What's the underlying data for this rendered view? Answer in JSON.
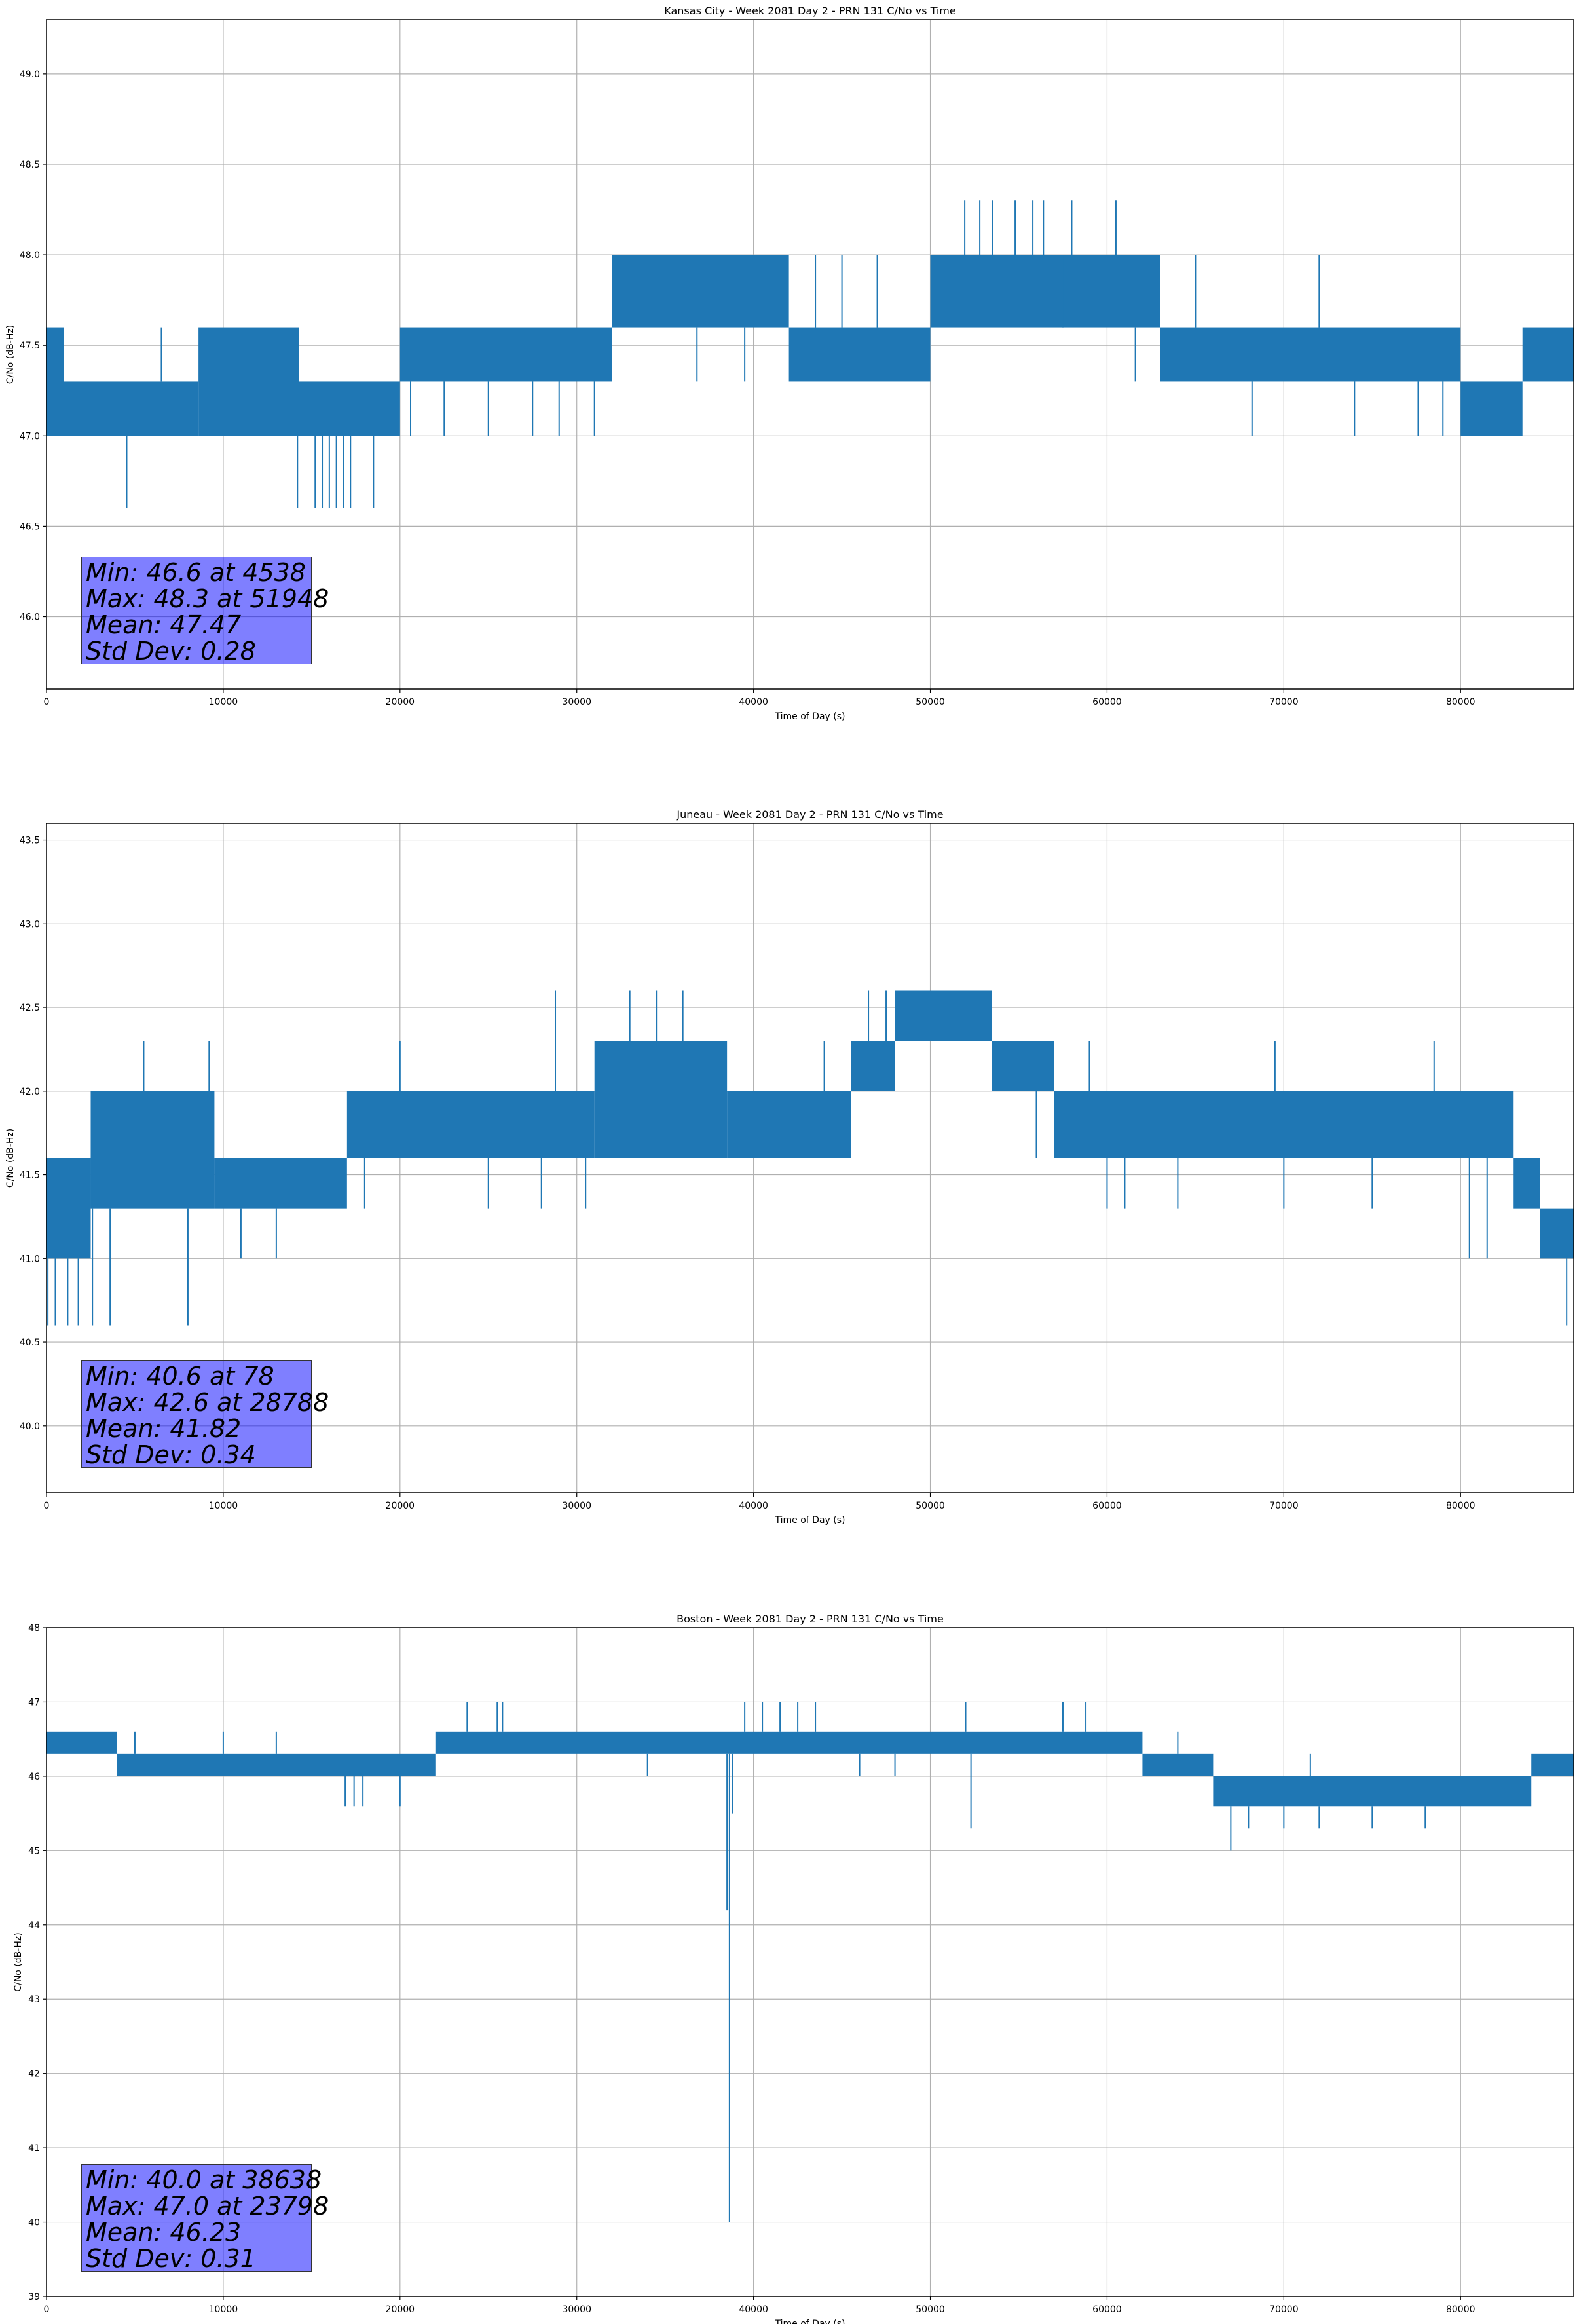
{
  "chart_data": [
    {
      "type": "line",
      "title": "Kansas City - Week 2081 Day 2 - PRN 131 C/No vs Time",
      "xlabel": "Time of Day (s)",
      "ylabel": "C/No (dB-Hz)",
      "xlim": [
        0,
        86400
      ],
      "ylim": [
        45.6,
        49.3
      ],
      "grid": true,
      "x_ticks": [
        0,
        10000,
        20000,
        30000,
        40000,
        50000,
        60000,
        70000,
        80000
      ],
      "y_ticks": [
        46.0,
        46.5,
        47.0,
        47.5,
        48.0,
        48.5,
        49.0
      ],
      "y_tick_decimals": 1,
      "series": [
        {
          "name": "C/No",
          "color": "#1f77b4",
          "bands": [
            {
              "x": [
                0,
                1000
              ],
              "low": 47.0,
              "high": 47.6
            },
            {
              "x": [
                1000,
                8600
              ],
              "low": 47.0,
              "high": 47.3
            },
            {
              "x": [
                8600,
                14300
              ],
              "low": 47.0,
              "high": 47.6
            },
            {
              "x": [
                14300,
                20000
              ],
              "low": 47.0,
              "high": 47.3
            },
            {
              "x": [
                20000,
                32000
              ],
              "low": 47.3,
              "high": 47.6
            },
            {
              "x": [
                32000,
                42000
              ],
              "low": 47.6,
              "high": 48.0
            },
            {
              "x": [
                42000,
                50000
              ],
              "low": 47.3,
              "high": 47.6
            },
            {
              "x": [
                50000,
                63000
              ],
              "low": 47.6,
              "high": 48.0
            },
            {
              "x": [
                63000,
                80000
              ],
              "low": 47.3,
              "high": 47.6
            },
            {
              "x": [
                80000,
                83500
              ],
              "low": 47.0,
              "high": 47.3
            },
            {
              "x": [
                83500,
                86400
              ],
              "low": 47.3,
              "high": 47.6
            }
          ],
          "spikes": [
            {
              "x": 4538,
              "y": 46.6
            },
            {
              "x": 14200,
              "y": 46.6
            },
            {
              "x": 15200,
              "y": 46.6
            },
            {
              "x": 15600,
              "y": 46.6
            },
            {
              "x": 16000,
              "y": 46.6
            },
            {
              "x": 16400,
              "y": 46.6
            },
            {
              "x": 16800,
              "y": 46.6
            },
            {
              "x": 17200,
              "y": 46.6
            },
            {
              "x": 18500,
              "y": 46.6
            },
            {
              "x": 6500,
              "y": 47.6
            },
            {
              "x": 9200,
              "y": 47.6
            },
            {
              "x": 12500,
              "y": 47.6
            },
            {
              "x": 20600,
              "y": 47.0
            },
            {
              "x": 22500,
              "y": 47.0
            },
            {
              "x": 25000,
              "y": 47.0
            },
            {
              "x": 27500,
              "y": 47.0
            },
            {
              "x": 29000,
              "y": 47.0
            },
            {
              "x": 31000,
              "y": 47.0
            },
            {
              "x": 32500,
              "y": 48.0
            },
            {
              "x": 34500,
              "y": 48.0
            },
            {
              "x": 36800,
              "y": 47.3
            },
            {
              "x": 39500,
              "y": 47.3
            },
            {
              "x": 43500,
              "y": 48.0
            },
            {
              "x": 45000,
              "y": 48.0
            },
            {
              "x": 47000,
              "y": 48.0
            },
            {
              "x": 51948,
              "y": 48.3
            },
            {
              "x": 52800,
              "y": 48.3
            },
            {
              "x": 53500,
              "y": 48.3
            },
            {
              "x": 54800,
              "y": 48.3
            },
            {
              "x": 55800,
              "y": 48.3
            },
            {
              "x": 56400,
              "y": 48.3
            },
            {
              "x": 58000,
              "y": 48.3
            },
            {
              "x": 60500,
              "y": 48.3
            },
            {
              "x": 57500,
              "y": 47.6
            },
            {
              "x": 61600,
              "y": 47.3
            },
            {
              "x": 68200,
              "y": 47.0
            },
            {
              "x": 72000,
              "y": 48.0
            },
            {
              "x": 77600,
              "y": 47.0
            },
            {
              "x": 65000,
              "y": 48.0
            },
            {
              "x": 74000,
              "y": 47.0
            },
            {
              "x": 79000,
              "y": 47.0
            }
          ]
        }
      ],
      "stats": [
        "Min: 46.6 at 4538",
        "Max: 48.3 at 51948",
        "Mean: 47.47",
        "Std Dev: 0.28"
      ]
    },
    {
      "type": "line",
      "title": "Juneau - Week 2081 Day 2 - PRN 131 C/No vs Time",
      "xlabel": "Time of Day (s)",
      "ylabel": "C/No (dB-Hz)",
      "xlim": [
        0,
        86400
      ],
      "ylim": [
        39.6,
        43.6
      ],
      "grid": true,
      "x_ticks": [
        0,
        10000,
        20000,
        30000,
        40000,
        50000,
        60000,
        70000,
        80000
      ],
      "y_ticks": [
        40.0,
        40.5,
        41.0,
        41.5,
        42.0,
        42.5,
        43.0,
        43.5
      ],
      "y_tick_decimals": 1,
      "series": [
        {
          "name": "C/No",
          "color": "#1f77b4",
          "bands": [
            {
              "x": [
                0,
                2500
              ],
              "low": 41.0,
              "high": 41.6
            },
            {
              "x": [
                2500,
                9500
              ],
              "low": 41.3,
              "high": 42.0
            },
            {
              "x": [
                9500,
                17000
              ],
              "low": 41.3,
              "high": 41.6
            },
            {
              "x": [
                17000,
                31000
              ],
              "low": 41.6,
              "high": 42.0
            },
            {
              "x": [
                31000,
                38500
              ],
              "low": 41.6,
              "high": 42.3
            },
            {
              "x": [
                38500,
                45500
              ],
              "low": 41.6,
              "high": 42.0
            },
            {
              "x": [
                45500,
                48000
              ],
              "low": 42.0,
              "high": 42.3
            },
            {
              "x": [
                48000,
                53500
              ],
              "low": 42.3,
              "high": 42.6
            },
            {
              "x": [
                53500,
                57000
              ],
              "low": 42.0,
              "high": 42.3
            },
            {
              "x": [
                57000,
                83000
              ],
              "low": 41.6,
              "high": 42.0
            },
            {
              "x": [
                83000,
                84500
              ],
              "low": 41.3,
              "high": 41.6
            },
            {
              "x": [
                84500,
                86400
              ],
              "low": 41.0,
              "high": 41.3
            }
          ],
          "spikes": [
            {
              "x": 78,
              "y": 40.6
            },
            {
              "x": 500,
              "y": 40.6
            },
            {
              "x": 1200,
              "y": 40.6
            },
            {
              "x": 1800,
              "y": 40.6
            },
            {
              "x": 2600,
              "y": 40.6
            },
            {
              "x": 3600,
              "y": 40.6
            },
            {
              "x": 8000,
              "y": 40.6
            },
            {
              "x": 13000,
              "y": 41.0
            },
            {
              "x": 11000,
              "y": 41.0
            },
            {
              "x": 18000,
              "y": 41.3
            },
            {
              "x": 25000,
              "y": 41.3
            },
            {
              "x": 9200,
              "y": 42.3
            },
            {
              "x": 5500,
              "y": 42.3
            },
            {
              "x": 20000,
              "y": 42.3
            },
            {
              "x": 28788,
              "y": 42.6
            },
            {
              "x": 33000,
              "y": 42.6
            },
            {
              "x": 34500,
              "y": 42.6
            },
            {
              "x": 36000,
              "y": 42.6
            },
            {
              "x": 28000,
              "y": 41.3
            },
            {
              "x": 30500,
              "y": 41.3
            },
            {
              "x": 44000,
              "y": 42.3
            },
            {
              "x": 46500,
              "y": 42.6
            },
            {
              "x": 47500,
              "y": 42.6
            },
            {
              "x": 56000,
              "y": 41.6
            },
            {
              "x": 59000,
              "y": 42.3
            },
            {
              "x": 60000,
              "y": 41.3
            },
            {
              "x": 61000,
              "y": 41.3
            },
            {
              "x": 64000,
              "y": 41.3
            },
            {
              "x": 69500,
              "y": 42.3
            },
            {
              "x": 70000,
              "y": 41.3
            },
            {
              "x": 75000,
              "y": 41.3
            },
            {
              "x": 78500,
              "y": 42.3
            },
            {
              "x": 80500,
              "y": 41.0
            },
            {
              "x": 81500,
              "y": 41.0
            },
            {
              "x": 86000,
              "y": 40.6
            }
          ]
        }
      ],
      "stats": [
        "Min: 40.6 at 78",
        "Max: 42.6 at 28788",
        "Mean: 41.82",
        "Std Dev: 0.34"
      ]
    },
    {
      "type": "line",
      "title": "Boston - Week 2081 Day 2 - PRN 131 C/No vs Time",
      "xlabel": "Time of Day (s)",
      "ylabel": "C/No (dB-Hz)",
      "xlim": [
        0,
        86400
      ],
      "ylim": [
        39,
        48
      ],
      "grid": true,
      "x_ticks": [
        0,
        10000,
        20000,
        30000,
        40000,
        50000,
        60000,
        70000,
        80000
      ],
      "y_ticks": [
        39,
        40,
        41,
        42,
        43,
        44,
        45,
        46,
        47,
        48
      ],
      "y_tick_decimals": 0,
      "series": [
        {
          "name": "C/No",
          "color": "#1f77b4",
          "bands": [
            {
              "x": [
                0,
                4000
              ],
              "low": 46.3,
              "high": 46.6
            },
            {
              "x": [
                4000,
                22000
              ],
              "low": 46.0,
              "high": 46.3
            },
            {
              "x": [
                22000,
                62000
              ],
              "low": 46.3,
              "high": 46.6
            },
            {
              "x": [
                62000,
                66000
              ],
              "low": 46.0,
              "high": 46.3
            },
            {
              "x": [
                66000,
                84000
              ],
              "low": 45.6,
              "high": 46.0
            },
            {
              "x": [
                84000,
                86400
              ],
              "low": 46.0,
              "high": 46.3
            }
          ],
          "spikes": [
            {
              "x": 38638,
              "y": 40.0
            },
            {
              "x": 38500,
              "y": 44.2
            },
            {
              "x": 38800,
              "y": 45.5
            },
            {
              "x": 23798,
              "y": 47.0
            },
            {
              "x": 25500,
              "y": 47.0
            },
            {
              "x": 25800,
              "y": 47.0
            },
            {
              "x": 39500,
              "y": 47.0
            },
            {
              "x": 40500,
              "y": 47.0
            },
            {
              "x": 41500,
              "y": 47.0
            },
            {
              "x": 42500,
              "y": 47.0
            },
            {
              "x": 43500,
              "y": 47.0
            },
            {
              "x": 52000,
              "y": 47.0
            },
            {
              "x": 57500,
              "y": 47.0
            },
            {
              "x": 58800,
              "y": 47.0
            },
            {
              "x": 16900,
              "y": 45.6
            },
            {
              "x": 17400,
              "y": 45.6
            },
            {
              "x": 17900,
              "y": 45.6
            },
            {
              "x": 20000,
              "y": 45.6
            },
            {
              "x": 52300,
              "y": 45.3
            },
            {
              "x": 67000,
              "y": 45.0
            },
            {
              "x": 68000,
              "y": 45.3
            },
            {
              "x": 70000,
              "y": 45.3
            },
            {
              "x": 72000,
              "y": 45.3
            },
            {
              "x": 75000,
              "y": 45.3
            },
            {
              "x": 78000,
              "y": 45.3
            },
            {
              "x": 71500,
              "y": 46.3
            },
            {
              "x": 64000,
              "y": 46.6
            },
            {
              "x": 5000,
              "y": 46.6
            },
            {
              "x": 10000,
              "y": 46.6
            },
            {
              "x": 13000,
              "y": 46.6
            },
            {
              "x": 34000,
              "y": 46.0
            },
            {
              "x": 46000,
              "y": 46.0
            },
            {
              "x": 48000,
              "y": 46.0
            }
          ]
        }
      ],
      "stats": [
        "Min: 40.0 at 38638",
        "Max: 47.0 at 23798",
        "Mean: 46.23",
        "Std Dev: 0.31"
      ]
    }
  ]
}
